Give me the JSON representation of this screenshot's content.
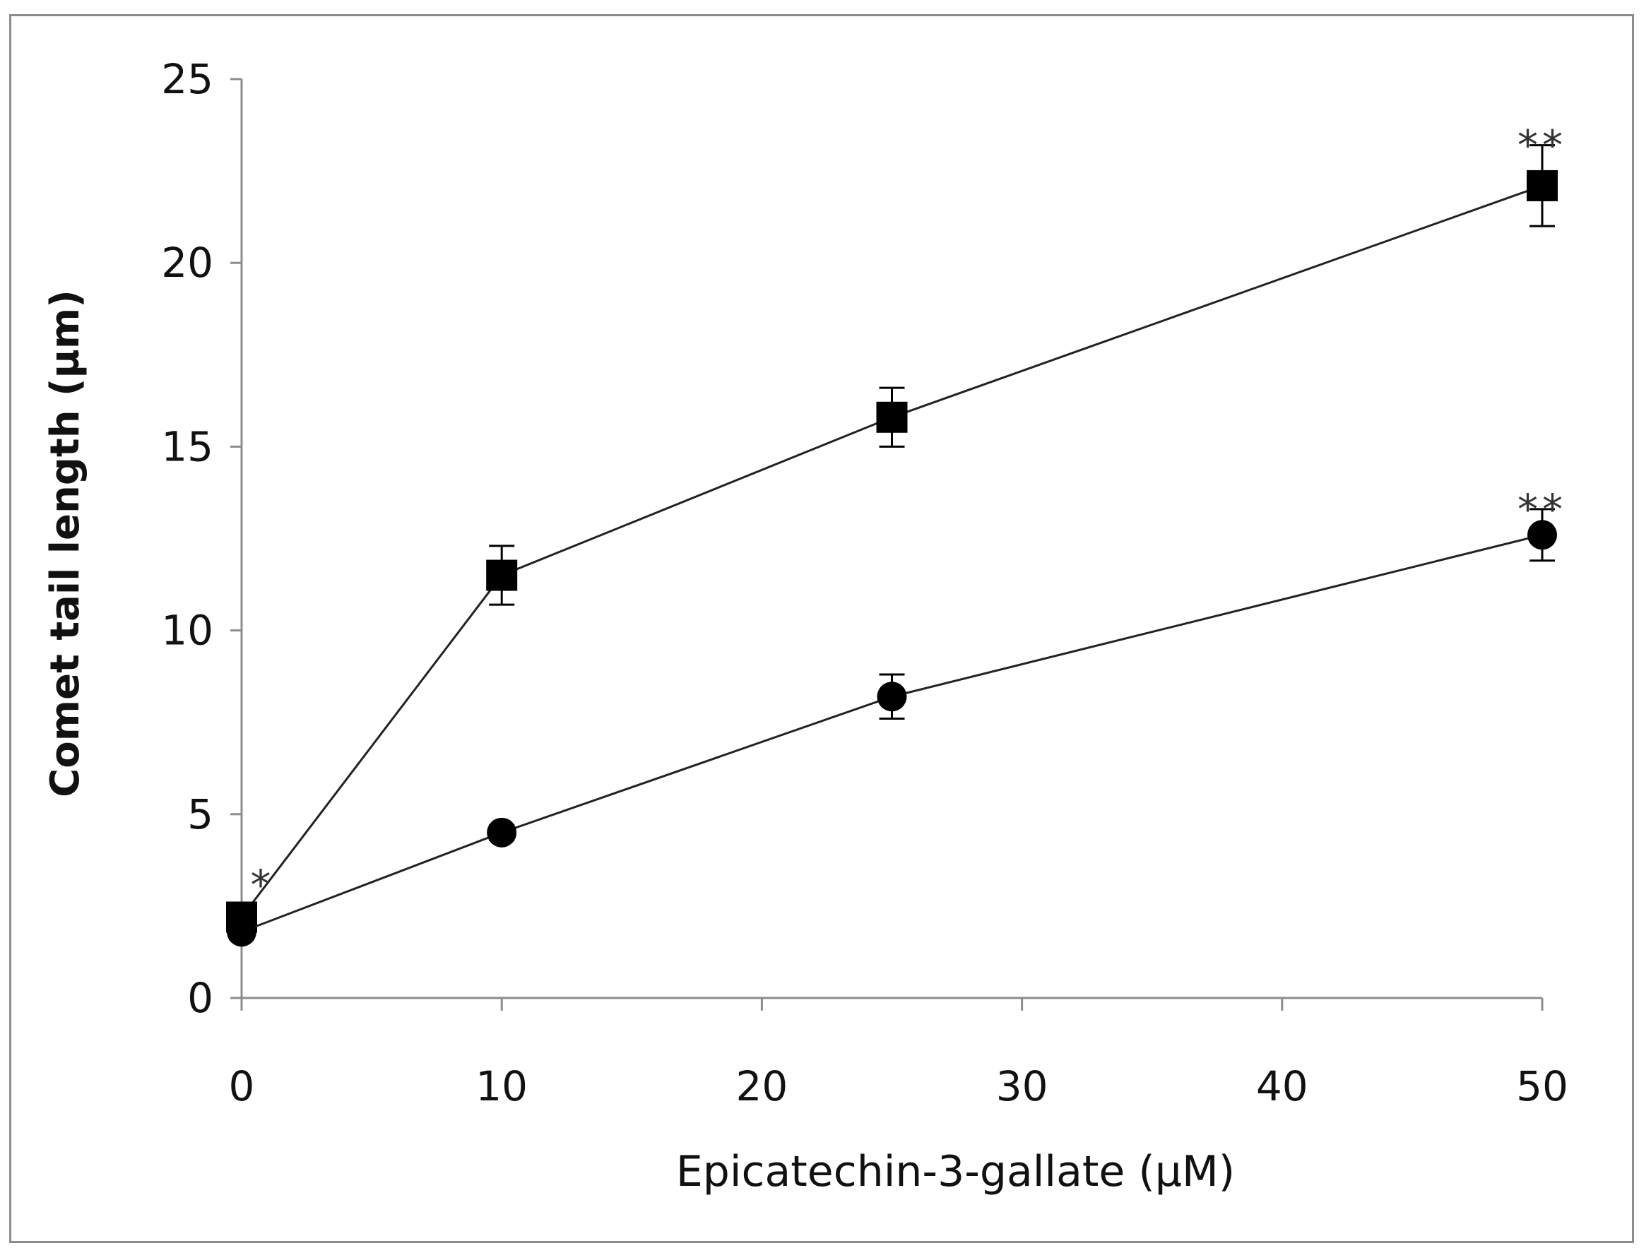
{
  "chart_data": {
    "type": "line",
    "title": "",
    "xlabel": "Epicatechin-3-gallate  (µM)",
    "ylabel": "Comet tail length (µm)",
    "xlim": [
      0,
      50
    ],
    "ylim": [
      0,
      25
    ],
    "x_ticks": [
      "0",
      "10",
      "20",
      "30",
      "40",
      "50"
    ],
    "y_ticks": [
      "0",
      "5",
      "10",
      "15",
      "20",
      "25"
    ],
    "grid": false,
    "legend": "none",
    "series": [
      {
        "marker": "square",
        "color": "#000000",
        "x": [
          0,
          10,
          25,
          50
        ],
        "y": [
          2.2,
          11.5,
          15.8,
          22.1
        ],
        "error": [
          0.3,
          0.8,
          0.8,
          1.1
        ]
      },
      {
        "marker": "circle",
        "color": "#000000",
        "x": [
          0,
          10,
          25,
          50
        ],
        "y": [
          1.8,
          4.5,
          8.2,
          12.6
        ],
        "error": [
          0.2,
          0.2,
          0.6,
          0.7
        ]
      }
    ],
    "annotations": [
      {
        "text": "*",
        "x": 0,
        "y": 2.5,
        "series": 0
      },
      {
        "text": "**",
        "x": 50,
        "y": 23.2,
        "series": 0
      },
      {
        "text": "**",
        "x": 50,
        "y": 13.3,
        "series": 1
      }
    ]
  }
}
